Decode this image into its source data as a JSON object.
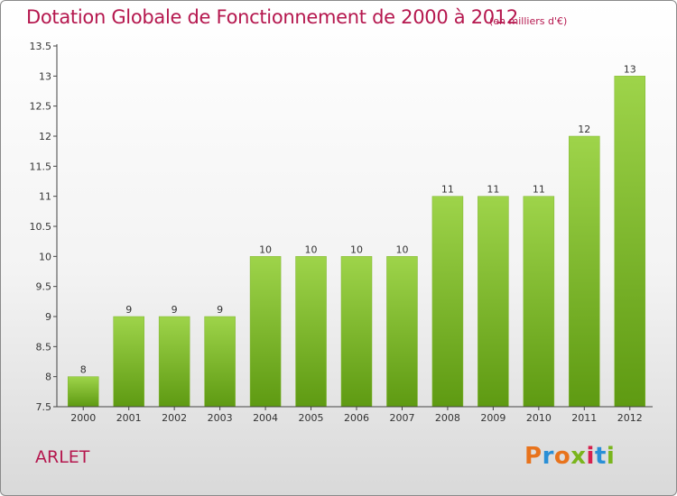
{
  "header": {
    "title": "Dotation Globale de Fonctionnement de 2000 à 2012",
    "subtitle": "(en milliers d'€)"
  },
  "footer": {
    "commune": "ARLET",
    "brand": "Proxiti"
  },
  "colors": {
    "bar_light": "#9ed44a",
    "bar_dark": "#5e9a12",
    "title": "#b5174e"
  },
  "chart_data": {
    "type": "bar",
    "title": "Dotation Globale de Fonctionnement de 2000 à 2012",
    "subtitle": "(en milliers d'€)",
    "xlabel": "",
    "ylabel": "",
    "categories": [
      "2000",
      "2001",
      "2002",
      "2003",
      "2004",
      "2005",
      "2006",
      "2007",
      "2008",
      "2009",
      "2010",
      "2011",
      "2012"
    ],
    "values": [
      8,
      9,
      9,
      9,
      10,
      10,
      10,
      10,
      11,
      11,
      11,
      12,
      13
    ],
    "ylim": [
      7.5,
      13.5
    ],
    "yticks": [
      7.5,
      8,
      8.5,
      9,
      9.5,
      10,
      10.5,
      11,
      11.5,
      12,
      12.5,
      13,
      13.5
    ],
    "ytick_labels": [
      "7.5",
      "8",
      "8.5",
      "9",
      "9.5",
      "10",
      "10.5",
      "11",
      "11.5",
      "12",
      "12.5",
      "13",
      "13.5"
    ],
    "grid": false,
    "legend": "none"
  }
}
